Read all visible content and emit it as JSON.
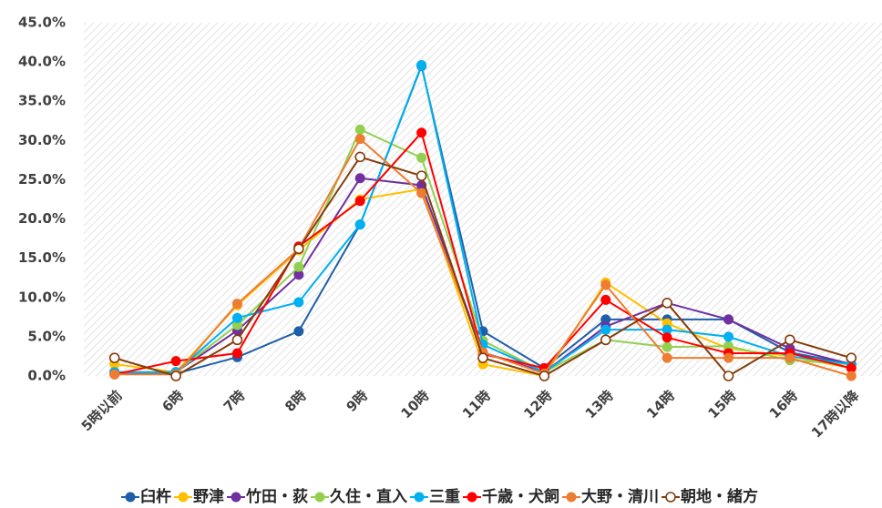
{
  "chart_data": {
    "type": "line",
    "categories": [
      "5時以前",
      "6時",
      "7時",
      "8時",
      "9時",
      "10時",
      "11時",
      "12時",
      "13時",
      "14時",
      "15時",
      "16時",
      "17時以降"
    ],
    "ylim": [
      0,
      45
    ],
    "yticks": [
      {
        "value": 0,
        "label": "0.0%"
      },
      {
        "value": 5,
        "label": "5.0%"
      },
      {
        "value": 10,
        "label": "10.0%"
      },
      {
        "value": 15,
        "label": "15.0%"
      },
      {
        "value": 20,
        "label": "20.0%"
      },
      {
        "value": 25,
        "label": "25.0%"
      },
      {
        "value": 30,
        "label": "30.0%"
      },
      {
        "value": 35,
        "label": "35.0%"
      },
      {
        "value": 40,
        "label": "40.0%"
      },
      {
        "value": 45,
        "label": "45.0%"
      }
    ],
    "legend": "bottom",
    "series": [
      {
        "name": "臼杵",
        "color": "#1f5fa8",
        "marker": "filled",
        "values": [
          0.3,
          0.3,
          2.4,
          5.7,
          19.3,
          39.5,
          5.7,
          1.0,
          7.2,
          7.2,
          7.2,
          3.0,
          1.5
        ]
      },
      {
        "name": "野津",
        "color": "#ffc000",
        "marker": "filled",
        "values": [
          1.5,
          0.5,
          9.0,
          16.0,
          22.5,
          23.8,
          1.5,
          0,
          11.9,
          6.7,
          3.5,
          2.5,
          1.0
        ]
      },
      {
        "name": "竹田・荻",
        "color": "#7030a0",
        "marker": "filled",
        "values": [
          0.3,
          0.5,
          5.8,
          12.9,
          25.2,
          24.3,
          3.0,
          0.5,
          6.3,
          9.3,
          7.2,
          3.5,
          1.5
        ]
      },
      {
        "name": "久住・直入",
        "color": "#92d050",
        "marker": "filled",
        "values": [
          0.5,
          0.5,
          6.5,
          13.9,
          31.4,
          27.8,
          4.5,
          0.5,
          4.6,
          3.7,
          3.8,
          2.0,
          1.5
        ]
      },
      {
        "name": "三重",
        "color": "#00b0f0",
        "marker": "filled",
        "values": [
          0.5,
          0.5,
          7.4,
          9.4,
          19.3,
          39.6,
          4.0,
          0.5,
          5.9,
          5.9,
          5.0,
          2.5,
          1.5
        ]
      },
      {
        "name": "千歳・犬飼",
        "color": "#ff0000",
        "marker": "filled",
        "values": [
          0.2,
          1.9,
          2.9,
          16.5,
          22.3,
          31.0,
          2.8,
          1.0,
          9.7,
          4.9,
          2.9,
          2.9,
          1.0
        ]
      },
      {
        "name": "大野・清川",
        "color": "#ed7d31",
        "marker": "filled",
        "values": [
          0.2,
          0.2,
          9.2,
          16.2,
          30.2,
          23.3,
          3.0,
          0.3,
          11.6,
          2.3,
          2.3,
          2.3,
          0
        ]
      },
      {
        "name": "朝地・緒方",
        "color": "#843c0c",
        "marker": "open",
        "values": [
          2.3,
          0,
          4.6,
          16.2,
          27.9,
          25.5,
          2.3,
          0,
          4.6,
          9.3,
          0,
          4.6,
          2.3
        ]
      }
    ]
  }
}
